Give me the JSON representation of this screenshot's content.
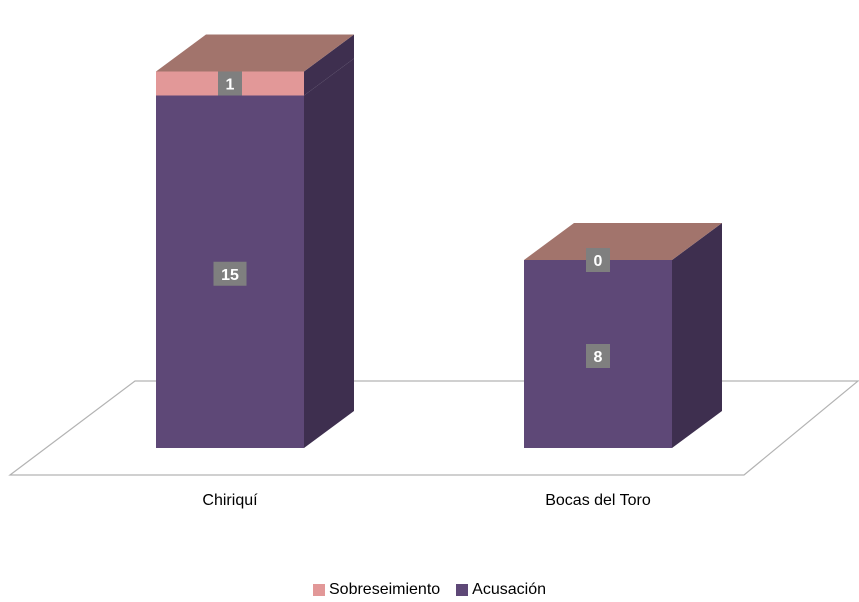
{
  "chart_data": {
    "type": "bar",
    "stacked": true,
    "three_d": true,
    "categories": [
      "Chiriquí",
      "Bocas del Toro"
    ],
    "series": [
      {
        "name": "Acusación",
        "values": [
          15,
          8
        ],
        "color": "#5e4877"
      },
      {
        "name": "Sobreseimiento",
        "values": [
          1,
          0
        ],
        "color": "#e29898"
      }
    ],
    "legend_order": [
      "Sobreseimiento",
      "Acusación"
    ],
    "legend_position": "bottom",
    "data_labels": true,
    "grid": false
  }
}
